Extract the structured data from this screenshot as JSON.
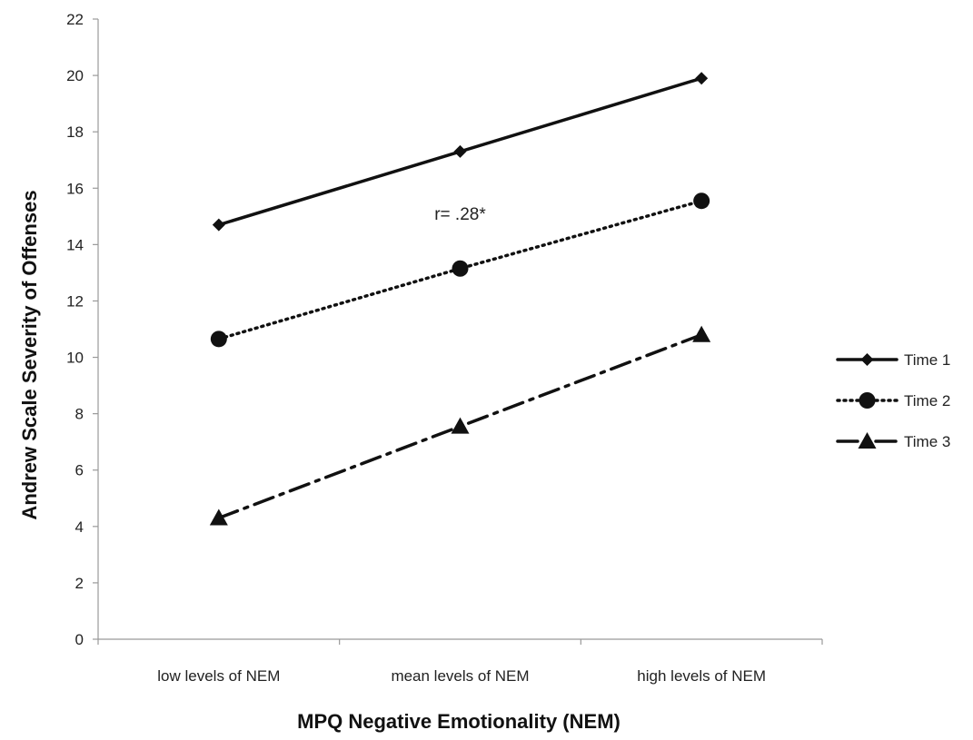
{
  "chart_data": {
    "type": "line",
    "categories": [
      "low levels of NEM",
      "mean levels of NEM",
      "high levels of NEM"
    ],
    "series": [
      {
        "name": "Time 1",
        "values": [
          14.7,
          17.3,
          19.9
        ],
        "color": "#111111",
        "marker": "diamond",
        "line_style": "solid"
      },
      {
        "name": "Time 2",
        "values": [
          10.65,
          13.15,
          15.55
        ],
        "color": "#111111",
        "marker": "circle",
        "line_style": "dotted"
      },
      {
        "name": "Time 3",
        "values": [
          4.3,
          7.55,
          10.8
        ],
        "color": "#111111",
        "marker": "triangle",
        "line_style": "dash-dot"
      }
    ],
    "xlabel": "MPQ Negative Emotionality (NEM)",
    "ylabel": "Andrew Scale Severity of Offenses",
    "ylim": [
      0,
      22
    ],
    "yticks": [
      0,
      2,
      4,
      6,
      8,
      10,
      12,
      14,
      16,
      18,
      20,
      22
    ],
    "annotations": [
      {
        "text": "r= .28*",
        "x": "mean levels of NEM",
        "y": 15.1
      }
    ],
    "legend_position": "right",
    "grid": false
  }
}
